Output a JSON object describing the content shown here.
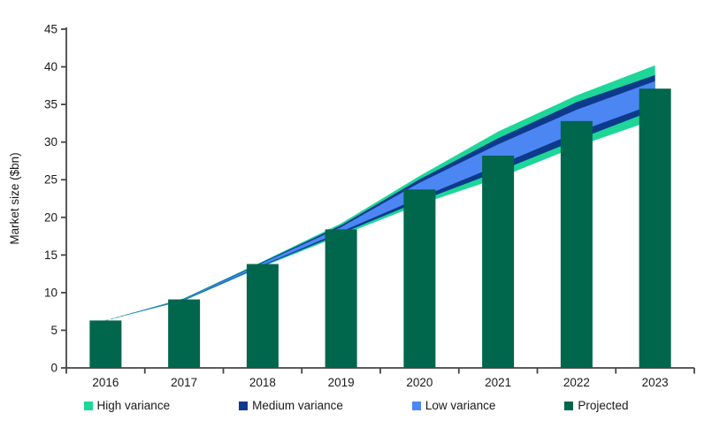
{
  "chart_data": {
    "type": "bar",
    "subtype": "bar_with_fan_variance_bands",
    "title": "",
    "xlabel": "",
    "ylabel": "Market size ($bn)",
    "categories": [
      "2016",
      "2017",
      "2018",
      "2019",
      "2020",
      "2021",
      "2022",
      "2023"
    ],
    "bars": {
      "name": "Projected",
      "values": [
        6.3,
        9.1,
        13.8,
        18.4,
        23.7,
        28.2,
        32.8,
        37.1
      ],
      "color": "#00664C"
    },
    "center_line": {
      "name": "projection-center-line",
      "values": [
        6.3,
        9.1,
        13.8,
        18.4,
        23.6,
        28.3,
        32.8,
        36.6
      ],
      "color": "#5EC8C3",
      "style": "dashed"
    },
    "bands": [
      {
        "name": "High variance",
        "color": "#1DD698",
        "upper": [
          6.3,
          9.25,
          14.15,
          19.2,
          25.5,
          31.4,
          36.2,
          40.2
        ],
        "lower": [
          6.3,
          8.95,
          13.45,
          17.6,
          21.7,
          25.2,
          29.4,
          33.0
        ]
      },
      {
        "name": "Medium variance",
        "color": "#0E3A8C",
        "upper": [
          6.3,
          9.2,
          14.05,
          18.95,
          25.05,
          30.5,
          35.3,
          38.9
        ],
        "lower": [
          6.3,
          9.0,
          13.55,
          17.85,
          22.15,
          26.1,
          30.3,
          34.3
        ]
      },
      {
        "name": "Low variance",
        "color": "#4C86F2",
        "upper": [
          6.3,
          9.15,
          13.95,
          18.7,
          24.6,
          29.7,
          34.3,
          38.1
        ],
        "lower": [
          6.3,
          9.05,
          13.65,
          18.1,
          22.6,
          26.9,
          31.3,
          35.1
        ]
      }
    ],
    "ylim": [
      0,
      45
    ],
    "yticks": [
      0,
      5,
      10,
      15,
      20,
      25,
      30,
      35,
      40,
      45
    ],
    "grid": false,
    "legend_position": "bottom",
    "axis_color": "#454545",
    "text_color": "#1a1a1a"
  },
  "legend": {
    "items": [
      {
        "label": "High variance"
      },
      {
        "label": "Medium variance"
      },
      {
        "label": "Low variance"
      },
      {
        "label": "Projected"
      }
    ]
  }
}
